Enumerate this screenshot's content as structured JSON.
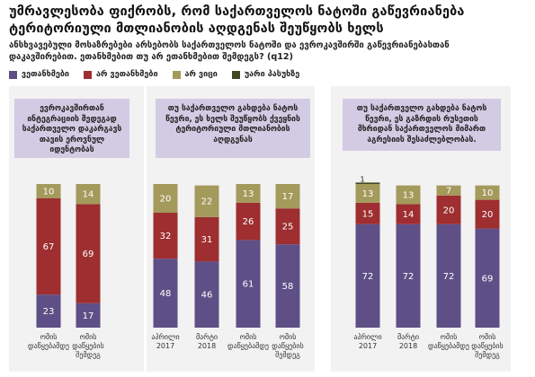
{
  "title": "უმრავლესობა ფიქრობს, რომ საქართველოს ნატოში გაწევრიანება ტერიტორიული მთლიანობის აღდგენას შეუწყობს ხელს",
  "subtitle": "ანსხვავებული მოსაზრებები არსებობს საქართველოს ნატოში და ევროკავშირში გაწევრიანებასთან დაკავშირებით. ეთანხმებით თუ არ ეთანხმებით შემდეგს? (q12)",
  "legend": [
    {
      "label": "ვეთანხმები",
      "color": "#5e4f86"
    },
    {
      "label": "არ ვეთანხმები",
      "color": "#9e2e30"
    },
    {
      "label": "არ ვიცი",
      "color": "#a39a5b"
    },
    {
      "label": "უარი პასუხზე",
      "color": "#3f4a25"
    }
  ],
  "panels": [
    {
      "callout": "ევროკავშირთან ინტეგრაციის შედეგად საქართველო დაკარგავს თავის ეროვნულ იდენტობას"
    },
    {
      "callout": "თუ საქართველო გახდება ნატოს წევრი, ეს ხელს შეუწყობს ქვეყნის ტერიტორიული მთლიანობის აღდგენას"
    },
    {
      "callout": "თუ საქართველო გახდება ნატოს წევრი, ეს გაზრდის რუსეთის მხრიდან საქართველოს მიმართ აგრესიის შესაძლებლობას."
    }
  ],
  "chart_data": [
    {
      "type": "bar",
      "stacked": true,
      "categories": [
        "ომის დაწყებამდე",
        "ომის დაწყების შემდეგ"
      ],
      "series": [
        {
          "name": "ვეთანხმები",
          "values": [
            23,
            17
          ]
        },
        {
          "name": "არ ვეთანხმები",
          "values": [
            67,
            69
          ]
        },
        {
          "name": "არ ვიცი",
          "values": [
            10,
            14
          ]
        },
        {
          "name": "უარი პასუხზე",
          "values": [
            0,
            0
          ]
        }
      ],
      "ylim": [
        0,
        100
      ]
    },
    {
      "type": "bar",
      "stacked": true,
      "categories": [
        "აპრილი 2017",
        "მარტი 2018",
        "ომის დაწყებამდე",
        "ომის დაწყების შემდეგ"
      ],
      "series": [
        {
          "name": "ვეთანხმები",
          "values": [
            48,
            46,
            61,
            58
          ]
        },
        {
          "name": "არ ვეთანხმები",
          "values": [
            32,
            31,
            26,
            25
          ]
        },
        {
          "name": "არ ვიცი",
          "values": [
            20,
            22,
            13,
            17
          ]
        },
        {
          "name": "უარი პასუხზე",
          "values": [
            0,
            0,
            0,
            0
          ]
        }
      ],
      "ylim": [
        0,
        100
      ]
    },
    {
      "type": "bar",
      "stacked": true,
      "categories": [
        "აპრილი 2017",
        "მარტი 2018",
        "ომის დაწყებამდე",
        "ომის დაწყების შემდეგ"
      ],
      "series": [
        {
          "name": "ვეთანხმები",
          "values": [
            72,
            72,
            72,
            69
          ]
        },
        {
          "name": "არ ვეთანხმები",
          "values": [
            15,
            14,
            20,
            20
          ]
        },
        {
          "name": "არ ვიცი",
          "values": [
            13,
            13,
            7,
            10
          ]
        },
        {
          "name": "უარი პასუხზე",
          "values": [
            1,
            0,
            0,
            0
          ]
        }
      ],
      "ylim": [
        0,
        100
      ]
    }
  ]
}
